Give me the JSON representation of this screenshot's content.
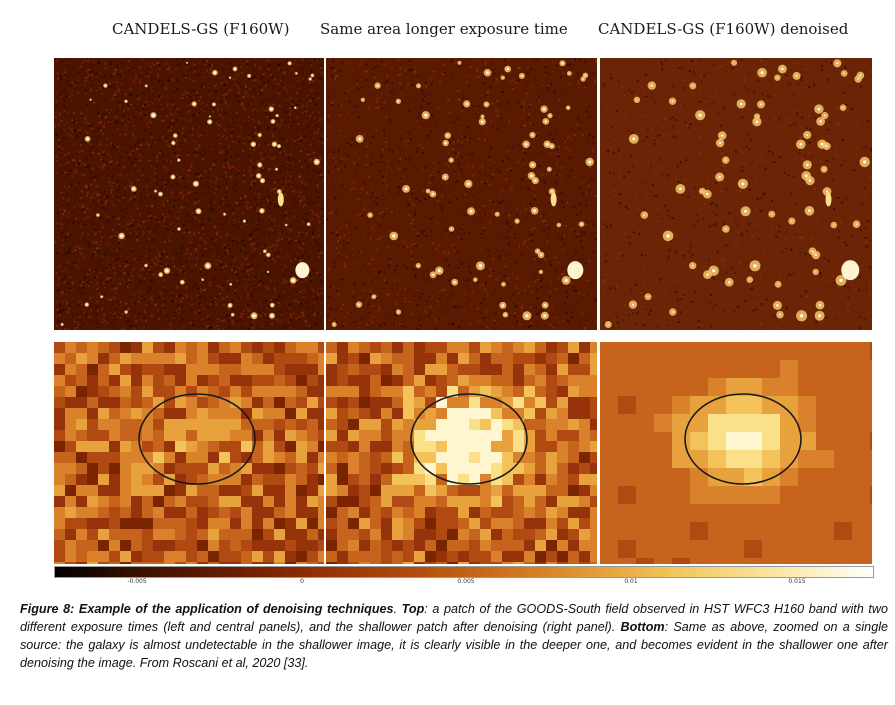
{
  "figure": {
    "titles": [
      "CANDELS-GS (F160W)",
      "Same area longer exposure time",
      "CANDELS-GS (F160W) denoised"
    ],
    "colorbar": {
      "ticks": [
        "-0.005",
        "0",
        "0.005",
        "0.01",
        "0.015"
      ]
    }
  },
  "caption": {
    "label": "Figure 8: Example of the application of denoising techniques",
    "top_label": "Top",
    "top_text": ": a patch of the GOODS-South field observed in HST WFC3 H160 band with two different exposure times (left and central panels), and the shallower patch after denoising (right panel). ",
    "bottom_label": "Bottom",
    "bottom_text": ": Same as above, zoomed on a single source: the galaxy is almost undetectable in the shallower image, it is clearly visible in the deeper one, and becomes evident in the shallower one after denoising the image. From Roscani et al, 2020 [33]."
  }
}
